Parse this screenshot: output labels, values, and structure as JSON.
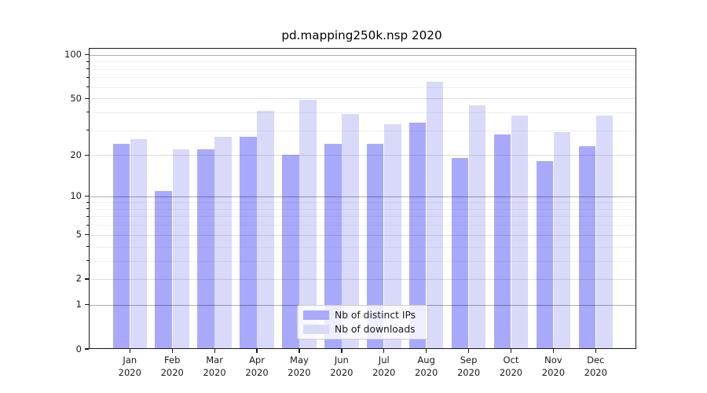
{
  "title": "pd.mapping250k.nsp 2020",
  "colors": {
    "ips_bar": "#a9a9fb",
    "downloads_bar": "#d9d9fa",
    "grid_decade": "rgba(0,0,0,0.32)",
    "grid_mid": "rgba(0,0,0,0.13)",
    "grid_minor": "rgba(0,0,0,0.06)",
    "axis": "#1a1a1a"
  },
  "legend": {
    "position": "lower center",
    "items": [
      {
        "label": "Nb of distinct IPs",
        "series": "ips"
      },
      {
        "label": "Nb of downloads",
        "series": "downloads"
      }
    ]
  },
  "chart_data": {
    "type": "bar",
    "title": "pd.mapping250k.nsp 2020",
    "categories": [
      "Jan 2020",
      "Feb 2020",
      "Mar 2020",
      "Apr 2020",
      "May 2020",
      "Jun 2020",
      "Jul 2020",
      "Aug 2020",
      "Sep 2020",
      "Oct 2020",
      "Nov 2020",
      "Dec 2020"
    ],
    "series": [
      {
        "name": "Nb of distinct IPs",
        "color": "#a9a9fb",
        "values": [
          24,
          11,
          22,
          27,
          20,
          24,
          24,
          34,
          19,
          28,
          18,
          23
        ]
      },
      {
        "name": "Nb of downloads",
        "color": "#d9d9fa",
        "values": [
          26,
          22,
          27,
          41,
          49,
          39,
          33,
          65,
          45,
          38,
          29,
          38
        ]
      }
    ],
    "xlabel": "",
    "ylabel": "",
    "y_scale": "log1p",
    "ylim": [
      0,
      112
    ],
    "y_major_ticks": [
      100,
      50,
      20,
      10,
      5,
      2,
      1,
      0
    ],
    "y_decade_ticks": [
      1,
      10,
      100
    ],
    "y_minor_ticks": [
      3,
      4,
      6,
      7,
      8,
      9,
      30,
      40,
      60,
      70,
      80,
      90
    ],
    "grid": true,
    "legend_position": "lower center"
  }
}
